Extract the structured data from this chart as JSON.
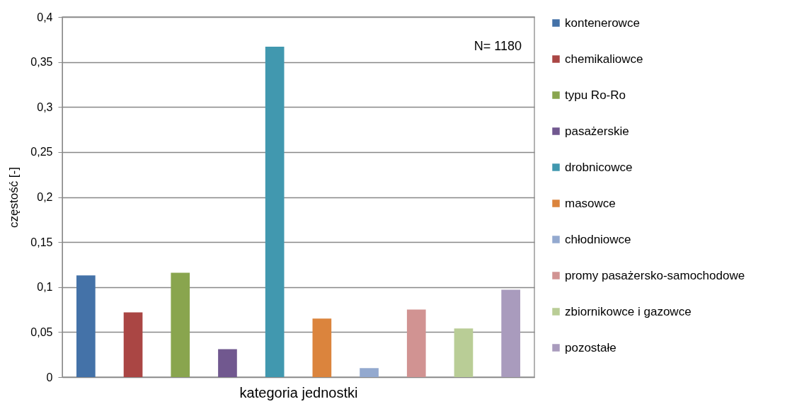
{
  "chart_data": {
    "type": "bar",
    "xlabel": "kategoria jednostki",
    "ylabel": "częstość [-]",
    "categories": [
      null
    ],
    "series": [
      {
        "name": "kontenerowce",
        "color": "#4472a8",
        "values": [
          0.113
        ]
      },
      {
        "name": "chemikaliowce",
        "color": "#aa4644",
        "values": [
          0.072
        ]
      },
      {
        "name": "typu Ro-Ro",
        "color": "#89a54e",
        "values": [
          0.116
        ]
      },
      {
        "name": "pasażerskie",
        "color": "#71588f",
        "values": [
          0.031
        ]
      },
      {
        "name": "drobnicowce",
        "color": "#4198af",
        "values": [
          0.367
        ]
      },
      {
        "name": "masowce",
        "color": "#db843d",
        "values": [
          0.065
        ]
      },
      {
        "name": "chłodniowce",
        "color": "#93a9cf",
        "values": [
          0.01
        ]
      },
      {
        "name": "promy pasażersko-samochodowe",
        "color": "#d19392",
        "values": [
          0.075
        ]
      },
      {
        "name": "zbiornikowce i gazowce",
        "color": "#b9cd96",
        "values": [
          0.054
        ]
      },
      {
        "name": "pozostałe",
        "color": "#a99bbd",
        "values": [
          0.097
        ]
      }
    ],
    "ylim": [
      0,
      0.4
    ],
    "yticks": [
      0,
      {
        "value": 0.05,
        "label": "0,05"
      },
      {
        "value": 0.1,
        "label": "0,1"
      },
      {
        "value": 0.15,
        "label": "0,15"
      },
      {
        "value": 0.2,
        "label": "0,2"
      },
      {
        "value": 0.25,
        "label": "0,25"
      },
      {
        "value": 0.3,
        "label": "0,3"
      },
      {
        "value": 0.35,
        "label": "0,35"
      },
      {
        "value": 0.4,
        "label": "0,4"
      }
    ],
    "grid": "y",
    "legend": "right",
    "annotations": [
      "N= 1180"
    ]
  }
}
